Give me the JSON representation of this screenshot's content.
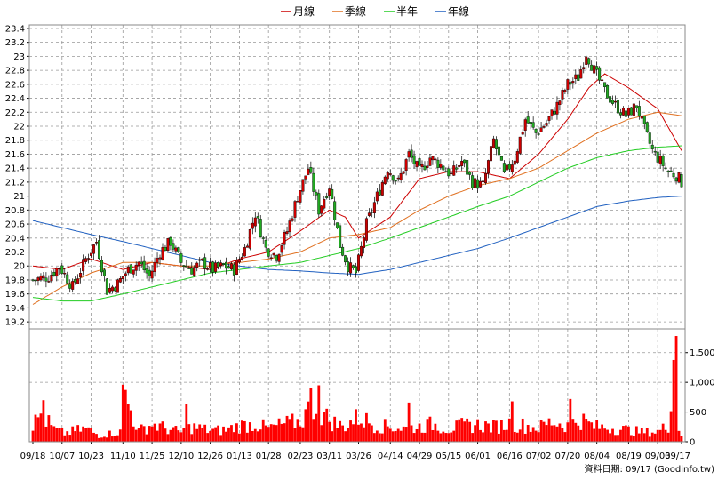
{
  "chart_data": {
    "type": "candlestick-with-volume",
    "legend": [
      {
        "name": "月線",
        "color": "#cc0000"
      },
      {
        "name": "季線",
        "color": "#e07020"
      },
      {
        "name": "半年",
        "color": "#22cc22"
      },
      {
        "name": "年線",
        "color": "#2060c0"
      }
    ],
    "price_axis": {
      "ylim": [
        19.1,
        23.45
      ],
      "ticks": [
        "23.4",
        "23.2",
        "23",
        "22.8",
        "22.6",
        "22.4",
        "22.2",
        "22",
        "21.8",
        "21.6",
        "21.4",
        "21.2",
        "21",
        "20.8",
        "20.6",
        "20.4",
        "20.2",
        "20",
        "19.8",
        "19.6",
        "19.4",
        "19.2"
      ],
      "tick_values": [
        23.4,
        23.2,
        23.0,
        22.8,
        22.6,
        22.4,
        22.2,
        22.0,
        21.8,
        21.6,
        21.4,
        21.2,
        21.0,
        20.8,
        20.6,
        20.4,
        20.2,
        20.0,
        19.8,
        19.6,
        19.4,
        19.2
      ]
    },
    "volume_axis": {
      "ylim": [
        0,
        1900
      ],
      "ticks": [
        "1,500",
        "1,000",
        "500",
        "0"
      ],
      "tick_values": [
        1500,
        1000,
        500,
        0
      ]
    },
    "x_labels": [
      "09/18",
      "10/07",
      "10/23",
      "11/10",
      "11/25",
      "12/10",
      "12/26",
      "01/13",
      "01/28",
      "02/23",
      "03/11",
      "03/26",
      "04/14",
      "04/29",
      "05/15",
      "06/01",
      "06/16",
      "07/02",
      "07/20",
      "08/04",
      "08/19",
      "09/03",
      "09/17"
    ],
    "x_label_index": [
      0,
      11,
      22,
      34,
      45,
      56,
      67,
      78,
      89,
      101,
      112,
      123,
      135,
      146,
      157,
      168,
      180,
      191,
      202,
      213,
      225,
      236,
      245
    ],
    "n_days": 246,
    "candle_anchors": [
      [
        0,
        19.8
      ],
      [
        6,
        19.85
      ],
      [
        10,
        20.0
      ],
      [
        15,
        19.7
      ],
      [
        20,
        20.1
      ],
      [
        24,
        20.35
      ],
      [
        28,
        19.65
      ],
      [
        32,
        19.75
      ],
      [
        36,
        19.95
      ],
      [
        40,
        20.05
      ],
      [
        44,
        19.85
      ],
      [
        48,
        20.2
      ],
      [
        52,
        20.35
      ],
      [
        56,
        20.05
      ],
      [
        60,
        19.95
      ],
      [
        64,
        20.05
      ],
      [
        68,
        19.95
      ],
      [
        72,
        20.0
      ],
      [
        76,
        19.95
      ],
      [
        80,
        20.25
      ],
      [
        84,
        20.75
      ],
      [
        88,
        20.25
      ],
      [
        92,
        20.15
      ],
      [
        96,
        20.5
      ],
      [
        100,
        21.0
      ],
      [
        104,
        21.4
      ],
      [
        108,
        20.8
      ],
      [
        112,
        21.15
      ],
      [
        116,
        20.3
      ],
      [
        119,
        20.0
      ],
      [
        122,
        19.9
      ],
      [
        126,
        20.6
      ],
      [
        130,
        21.0
      ],
      [
        134,
        21.4
      ],
      [
        138,
        21.2
      ],
      [
        142,
        21.6
      ],
      [
        146,
        21.35
      ],
      [
        150,
        21.55
      ],
      [
        154,
        21.45
      ],
      [
        158,
        21.3
      ],
      [
        162,
        21.5
      ],
      [
        166,
        21.2
      ],
      [
        170,
        21.15
      ],
      [
        174,
        21.8
      ],
      [
        178,
        21.3
      ],
      [
        182,
        21.55
      ],
      [
        186,
        22.1
      ],
      [
        190,
        21.9
      ],
      [
        194,
        22.05
      ],
      [
        198,
        22.3
      ],
      [
        202,
        22.6
      ],
      [
        206,
        22.7
      ],
      [
        209,
        23.05
      ],
      [
        212,
        22.8
      ],
      [
        216,
        22.5
      ],
      [
        220,
        22.3
      ],
      [
        224,
        22.15
      ],
      [
        228,
        22.3
      ],
      [
        231,
        21.95
      ],
      [
        234,
        21.65
      ],
      [
        237,
        21.5
      ],
      [
        240,
        21.35
      ],
      [
        243,
        21.3
      ],
      [
        245,
        21.2
      ]
    ],
    "series": [
      {
        "name": "月線",
        "anchors": [
          [
            0,
            20.0
          ],
          [
            11,
            19.95
          ],
          [
            22,
            20.1
          ],
          [
            34,
            19.95
          ],
          [
            45,
            20.05
          ],
          [
            56,
            20.0
          ],
          [
            67,
            19.95
          ],
          [
            78,
            20.1
          ],
          [
            89,
            20.2
          ],
          [
            101,
            20.5
          ],
          [
            112,
            20.8
          ],
          [
            118,
            20.7
          ],
          [
            123,
            20.4
          ],
          [
            135,
            20.7
          ],
          [
            146,
            21.25
          ],
          [
            157,
            21.35
          ],
          [
            168,
            21.35
          ],
          [
            180,
            21.25
          ],
          [
            191,
            21.6
          ],
          [
            202,
            22.1
          ],
          [
            210,
            22.55
          ],
          [
            216,
            22.75
          ],
          [
            225,
            22.55
          ],
          [
            236,
            22.25
          ],
          [
            245,
            21.65
          ]
        ]
      },
      {
        "name": "季線",
        "anchors": [
          [
            0,
            19.45
          ],
          [
            11,
            19.7
          ],
          [
            22,
            19.9
          ],
          [
            34,
            20.05
          ],
          [
            45,
            20.05
          ],
          [
            56,
            20.0
          ],
          [
            67,
            20.0
          ],
          [
            78,
            20.05
          ],
          [
            89,
            20.1
          ],
          [
            101,
            20.2
          ],
          [
            112,
            20.4
          ],
          [
            123,
            20.45
          ],
          [
            135,
            20.55
          ],
          [
            146,
            20.8
          ],
          [
            157,
            21.0
          ],
          [
            168,
            21.15
          ],
          [
            180,
            21.25
          ],
          [
            191,
            21.4
          ],
          [
            202,
            21.65
          ],
          [
            213,
            21.9
          ],
          [
            225,
            22.1
          ],
          [
            236,
            22.2
          ],
          [
            245,
            22.15
          ]
        ]
      },
      {
        "name": "半年",
        "anchors": [
          [
            0,
            19.55
          ],
          [
            11,
            19.5
          ],
          [
            22,
            19.5
          ],
          [
            34,
            19.6
          ],
          [
            45,
            19.7
          ],
          [
            56,
            19.8
          ],
          [
            67,
            19.9
          ],
          [
            78,
            19.95
          ],
          [
            89,
            20.0
          ],
          [
            101,
            20.05
          ],
          [
            112,
            20.15
          ],
          [
            123,
            20.25
          ],
          [
            135,
            20.4
          ],
          [
            146,
            20.55
          ],
          [
            157,
            20.7
          ],
          [
            168,
            20.85
          ],
          [
            180,
            21.0
          ],
          [
            191,
            21.2
          ],
          [
            202,
            21.4
          ],
          [
            213,
            21.55
          ],
          [
            225,
            21.65
          ],
          [
            236,
            21.7
          ],
          [
            245,
            21.72
          ]
        ]
      },
      {
        "name": "年線",
        "anchors": [
          [
            0,
            20.65
          ],
          [
            11,
            20.55
          ],
          [
            22,
            20.45
          ],
          [
            34,
            20.35
          ],
          [
            45,
            20.25
          ],
          [
            56,
            20.15
          ],
          [
            67,
            20.05
          ],
          [
            78,
            20.0
          ],
          [
            89,
            19.95
          ],
          [
            101,
            19.93
          ],
          [
            112,
            19.9
          ],
          [
            123,
            19.88
          ],
          [
            135,
            19.95
          ],
          [
            146,
            20.05
          ],
          [
            157,
            20.15
          ],
          [
            168,
            20.25
          ],
          [
            180,
            20.4
          ],
          [
            191,
            20.55
          ],
          [
            202,
            20.7
          ],
          [
            213,
            20.85
          ],
          [
            225,
            20.93
          ],
          [
            236,
            20.98
          ],
          [
            245,
            21.0
          ]
        ]
      }
    ],
    "volume_anchors": [
      [
        0,
        300
      ],
      [
        3,
        520
      ],
      [
        8,
        230
      ],
      [
        12,
        160
      ],
      [
        20,
        250
      ],
      [
        25,
        120
      ],
      [
        33,
        180
      ],
      [
        34,
        960
      ],
      [
        40,
        200
      ],
      [
        45,
        330
      ],
      [
        50,
        250
      ],
      [
        56,
        180
      ],
      [
        60,
        280
      ],
      [
        67,
        210
      ],
      [
        73,
        220
      ],
      [
        78,
        300
      ],
      [
        84,
        330
      ],
      [
        89,
        250
      ],
      [
        94,
        320
      ],
      [
        101,
        380
      ],
      [
        106,
        700
      ],
      [
        112,
        400
      ],
      [
        117,
        280
      ],
      [
        123,
        460
      ],
      [
        130,
        300
      ],
      [
        135,
        280
      ],
      [
        140,
        250
      ],
      [
        146,
        280
      ],
      [
        151,
        330
      ],
      [
        157,
        240
      ],
      [
        162,
        300
      ],
      [
        168,
        320
      ],
      [
        174,
        280
      ],
      [
        180,
        340
      ],
      [
        186,
        300
      ],
      [
        191,
        260
      ],
      [
        196,
        380
      ],
      [
        202,
        310
      ],
      [
        207,
        420
      ],
      [
        212,
        280
      ],
      [
        218,
        260
      ],
      [
        225,
        220
      ],
      [
        230,
        180
      ],
      [
        236,
        190
      ],
      [
        240,
        300
      ],
      [
        242,
        1750
      ],
      [
        243,
        250
      ],
      [
        245,
        150
      ]
    ],
    "volume_spikes": [
      [
        4,
        700
      ],
      [
        34,
        960
      ],
      [
        58,
        640
      ],
      [
        105,
        900
      ],
      [
        108,
        950
      ],
      [
        142,
        660
      ],
      [
        181,
        680
      ],
      [
        203,
        720
      ],
      [
        243,
        1780
      ]
    ],
    "colors": {
      "up": "#cc0000",
      "down": "#22aa22",
      "volume": "#ff0000",
      "grid": "#999999",
      "plot_bg": "#ffffff"
    }
  },
  "footer_note": "資料日期: 09/17   (Goodinfo.tw)"
}
